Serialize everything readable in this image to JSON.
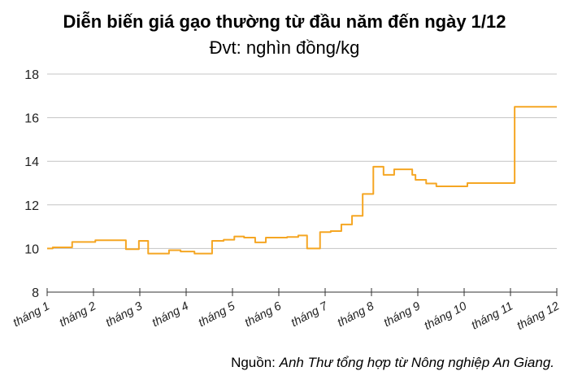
{
  "chart_data": {
    "type": "line",
    "title": "Diễn biến giá gạo thường từ đầu năm đến ngày 1/12",
    "subtitle": "Đvt: nghìn đồng/kg",
    "xlabel": "",
    "ylabel": "",
    "ylim": [
      8,
      18
    ],
    "yticks": [
      "8",
      "10",
      "12",
      "14",
      "16",
      "18"
    ],
    "xlim": [
      1,
      12
    ],
    "xtick_labels": [
      "tháng 1",
      "tháng 2",
      "tháng 3",
      "tháng 4",
      "tháng 5",
      "tháng 6",
      "tháng 7",
      "tháng 8",
      "tháng 9",
      "tháng 10",
      "tháng 11",
      "tháng 12"
    ],
    "grid": "horizontal",
    "line_style": "step",
    "color": "#F5A623",
    "points": [
      [
        1.0,
        10.0
      ],
      [
        1.12,
        10.05
      ],
      [
        1.54,
        10.3
      ],
      [
        2.04,
        10.38
      ],
      [
        2.7,
        9.97
      ],
      [
        2.98,
        10.35
      ],
      [
        3.18,
        9.77
      ],
      [
        3.63,
        9.92
      ],
      [
        3.88,
        9.86
      ],
      [
        4.18,
        9.77
      ],
      [
        4.56,
        10.35
      ],
      [
        4.81,
        10.4
      ],
      [
        5.04,
        10.55
      ],
      [
        5.25,
        10.5
      ],
      [
        5.49,
        10.28
      ],
      [
        5.72,
        10.5
      ],
      [
        6.18,
        10.53
      ],
      [
        6.42,
        10.6
      ],
      [
        6.61,
        10.0
      ],
      [
        6.89,
        10.75
      ],
      [
        7.12,
        10.8
      ],
      [
        7.35,
        11.1
      ],
      [
        7.58,
        11.5
      ],
      [
        7.81,
        12.5
      ],
      [
        8.04,
        13.75
      ],
      [
        8.26,
        13.38
      ],
      [
        8.49,
        13.63
      ],
      [
        8.75,
        13.63
      ],
      [
        8.88,
        13.38
      ],
      [
        8.95,
        13.15
      ],
      [
        9.18,
        12.98
      ],
      [
        9.4,
        12.85
      ],
      [
        10.07,
        13.0
      ],
      [
        11.09,
        16.5
      ],
      [
        12.0,
        16.5
      ]
    ]
  },
  "source": {
    "label": "Nguồn:",
    "text": "Anh Thư tổng hợp từ Nông nghiệp An Giang."
  }
}
